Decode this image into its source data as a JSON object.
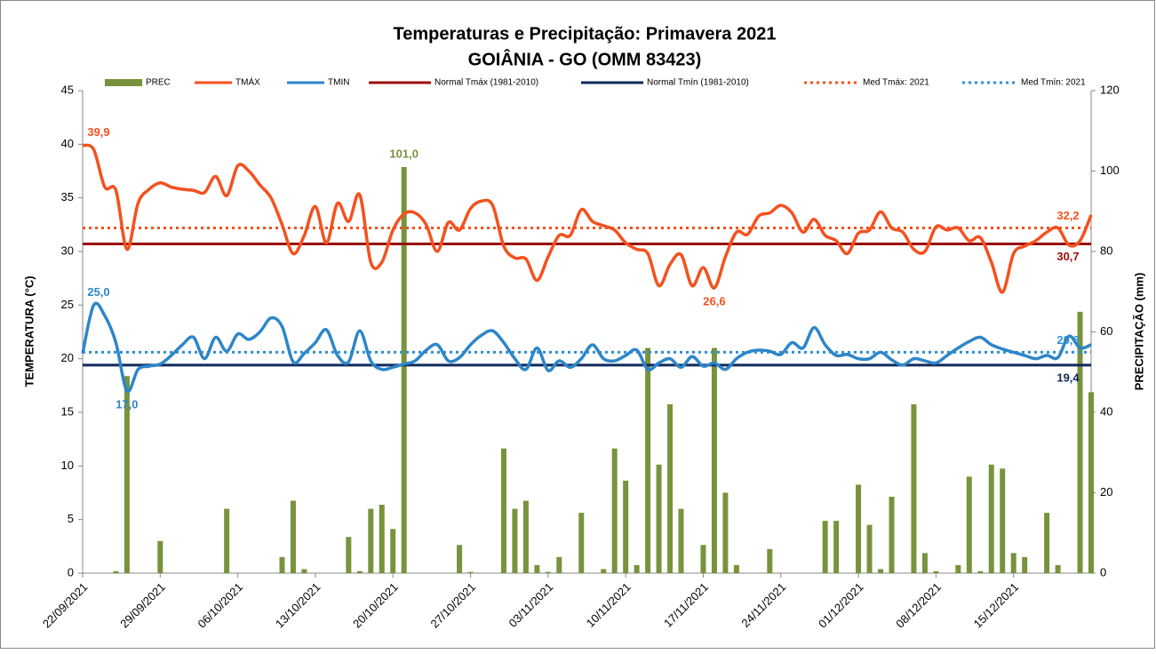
{
  "chart_data": {
    "type": "bar-line",
    "title": "Temperaturas e Precipitação: Primavera 2021",
    "subtitle": "GOIÂNIA - GO (OMM 83423)",
    "y_label": "TEMPERATURA (°C)",
    "y2_label": "PRECIPITAÇÃO (mm)",
    "legend": "top",
    "grid": false,
    "categories": [
      "22/09/2021",
      null,
      null,
      null,
      null,
      null,
      null,
      "29/09/2021",
      null,
      null,
      null,
      null,
      null,
      null,
      "06/10/2021",
      null,
      null,
      null,
      null,
      null,
      null,
      "13/10/2021",
      null,
      null,
      null,
      null,
      null,
      null,
      "20/10/2021",
      null,
      null,
      null,
      null,
      null,
      null,
      "27/10/2021",
      null,
      null,
      null,
      null,
      null,
      null,
      "03/11/2021",
      null,
      null,
      null,
      null,
      null,
      null,
      "10/11/2021",
      null,
      null,
      null,
      null,
      null,
      null,
      "17/11/2021",
      null,
      null,
      null,
      null,
      null,
      null,
      "24/11/2021",
      null,
      null,
      null,
      null,
      null,
      null,
      "01/12/2021",
      null,
      null,
      null,
      null,
      null,
      null,
      "08/12/2021",
      null,
      null,
      null,
      null,
      null,
      null,
      "15/12/2021",
      null,
      null,
      null,
      null,
      null,
      null,
      null
    ],
    "ylim": [
      0,
      45
    ],
    "yticks": [
      0,
      5,
      10,
      15,
      20,
      25,
      30,
      35,
      40,
      45
    ],
    "y2lim": [
      0,
      120
    ],
    "y2ticks": [
      0,
      20,
      40,
      60,
      80,
      100,
      120
    ],
    "series": [
      {
        "name": "PREC",
        "kind": "bar",
        "axis": "y2",
        "color": "#77933c",
        "values": [
          0,
          0,
          0,
          0.5,
          49,
          0,
          0,
          8,
          0,
          0,
          0,
          0,
          0,
          16,
          0,
          0,
          0,
          0,
          4,
          18,
          1,
          0,
          0,
          0,
          9,
          0.5,
          16,
          17,
          11,
          101,
          0,
          0,
          0,
          0,
          7,
          0.3,
          0,
          0,
          31,
          16,
          18,
          2,
          0.3,
          4,
          0,
          15,
          0,
          1,
          31,
          23,
          2,
          56,
          27,
          42,
          16,
          0,
          7,
          56,
          20,
          2,
          0,
          0,
          6,
          0,
          0,
          0,
          0,
          13,
          13,
          0,
          22,
          12,
          1,
          19,
          0,
          42,
          5,
          0.5,
          0,
          2,
          24,
          0.5,
          27,
          26,
          5,
          4,
          0,
          15,
          2,
          0,
          65,
          45
        ],
        "value_labels": [
          null,
          null,
          null,
          null,
          null,
          null,
          null,
          null,
          null,
          null,
          null,
          null,
          null,
          null,
          null,
          null,
          null,
          null,
          null,
          null,
          null,
          null,
          null,
          null,
          null,
          null,
          null,
          null,
          null,
          "101,0",
          null,
          null,
          null,
          null,
          null,
          null,
          null,
          null,
          null,
          null,
          null,
          null,
          null,
          null,
          null,
          null,
          null,
          null,
          null,
          null,
          null,
          null,
          null,
          null,
          null,
          null,
          null,
          null,
          null,
          null,
          null,
          null,
          null,
          null,
          null,
          null,
          null,
          null,
          null,
          null,
          null,
          null,
          null,
          null,
          null,
          null,
          null,
          null,
          null,
          null,
          null,
          null,
          null,
          null,
          null,
          null,
          null,
          null,
          null,
          null,
          null,
          null
        ]
      },
      {
        "name": "TMÁX",
        "kind": "line",
        "color": "#f4511e",
        "values": [
          39.9,
          39.5,
          36,
          35.7,
          30.2,
          34.5,
          35.8,
          36.4,
          36,
          35.8,
          35.7,
          35.5,
          37,
          35.2,
          38,
          37.5,
          36.2,
          35,
          32.5,
          29.8,
          31.5,
          34.2,
          30.8,
          34.5,
          32.8,
          35.3,
          29,
          29,
          32,
          33.5,
          33.6,
          32.5,
          30,
          32.7,
          32,
          34,
          34.7,
          34.3,
          30.5,
          29.4,
          29.3,
          27.3,
          29.5,
          31.5,
          31.5,
          33.9,
          32.8,
          32.4,
          32,
          30.8,
          30.2,
          29.8,
          26.8,
          28.8,
          29.7,
          26.8,
          28.5,
          26.6,
          29.5,
          31.8,
          31.6,
          33.3,
          33.6,
          34.3,
          33.6,
          31.8,
          33,
          31.5,
          31,
          29.8,
          31.7,
          32,
          33.7,
          32.2,
          31.8,
          30.2,
          30,
          32.3,
          32,
          32.2,
          31,
          31.3,
          29,
          26.2,
          29.8,
          30.5,
          31,
          31.8,
          32.2,
          30.6,
          31,
          33.4
        ],
        "value_labels": [
          "39,9",
          null,
          null,
          null,
          null,
          null,
          null,
          null,
          null,
          null,
          null,
          null,
          null,
          null,
          null,
          null,
          null,
          null,
          null,
          null,
          null,
          null,
          null,
          null,
          null,
          null,
          null,
          null,
          null,
          null,
          null,
          null,
          null,
          null,
          null,
          null,
          null,
          null,
          null,
          null,
          null,
          null,
          null,
          null,
          null,
          null,
          null,
          null,
          null,
          null,
          null,
          null,
          null,
          null,
          null,
          null,
          null,
          "26,6",
          null,
          null,
          null,
          null,
          null,
          null,
          null,
          null,
          null,
          null,
          null,
          null,
          null,
          null,
          null,
          null,
          null,
          null,
          null,
          null,
          null,
          null,
          null,
          null,
          null,
          null,
          null,
          null,
          null,
          null,
          null,
          null,
          null,
          null
        ]
      },
      {
        "name": "TMIN",
        "kind": "line",
        "color": "#2e86c8",
        "values": [
          20.5,
          25,
          24,
          21.5,
          17,
          19,
          19.3,
          19.5,
          20.3,
          21.3,
          22,
          20,
          22,
          20.7,
          22.3,
          21.8,
          22.5,
          23.8,
          23,
          19.7,
          20.5,
          21.5,
          22.7,
          20.3,
          19.7,
          22.6,
          19.8,
          19,
          19.2,
          19.5,
          19.8,
          20.8,
          21.3,
          19.8,
          20.1,
          21.3,
          22.2,
          22.6,
          21.5,
          20,
          19,
          21,
          18.9,
          19.8,
          19.2,
          20,
          21.3,
          20,
          19.8,
          20.3,
          20.8,
          19,
          19.6,
          20,
          19.2,
          20.2,
          19.3,
          19.6,
          19,
          20,
          20.6,
          20.8,
          20.7,
          20.4,
          21.5,
          21,
          22.9,
          21.3,
          20.3,
          20.4,
          20,
          20,
          20.6,
          19.9,
          19.4,
          20,
          19.8,
          19.6,
          20.3,
          21,
          21.6,
          22,
          21.3,
          20.9,
          20.6,
          20.3,
          20,
          20.3,
          20.1,
          22.1,
          21,
          21.3
        ],
        "value_labels": [
          null,
          "25,0",
          null,
          null,
          "17,0",
          null,
          null,
          null,
          null,
          null,
          null,
          null,
          null,
          null,
          null,
          null,
          null,
          null,
          null,
          null,
          null,
          null,
          null,
          null,
          null,
          null,
          null,
          null,
          null,
          null,
          null,
          null,
          null,
          null,
          null,
          null,
          null,
          null,
          null,
          null,
          null,
          null,
          null,
          null,
          null,
          null,
          null,
          null,
          null,
          null,
          null,
          null,
          null,
          null,
          null,
          null,
          null,
          null,
          null,
          null,
          null,
          null,
          null,
          null,
          null,
          null,
          null,
          null,
          null,
          null,
          null,
          null,
          null,
          null,
          null,
          null,
          null,
          null,
          null,
          null,
          null,
          null,
          null,
          null,
          null,
          null,
          null,
          null,
          null,
          null,
          null,
          null
        ]
      },
      {
        "name": "Normal Tmáx (1981-2010)",
        "kind": "constant",
        "style": "solid",
        "color": "#9b0d0d",
        "value": 30.7,
        "value_label": "30,7"
      },
      {
        "name": "Normal Tmín (1981-2010)",
        "kind": "constant",
        "style": "solid",
        "color": "#0f2a5c",
        "value": 19.4,
        "value_label": "19,4"
      },
      {
        "name": "Med Tmáx: 2021",
        "kind": "constant",
        "style": "dotted",
        "color": "#f4511e",
        "value": 32.2,
        "value_label": "32,2"
      },
      {
        "name": "Med Tmín: 2021",
        "kind": "constant",
        "style": "dotted",
        "color": "#2e8fd6",
        "value": 20.6,
        "value_label": "20,6"
      }
    ]
  }
}
